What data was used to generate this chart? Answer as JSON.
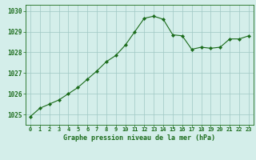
{
  "x": [
    0,
    1,
    2,
    3,
    4,
    5,
    6,
    7,
    8,
    9,
    10,
    11,
    12,
    13,
    14,
    15,
    16,
    17,
    18,
    19,
    20,
    21,
    22,
    23
  ],
  "y": [
    1024.9,
    1025.3,
    1025.5,
    1025.7,
    1026.0,
    1026.3,
    1026.7,
    1027.1,
    1027.55,
    1027.85,
    1028.35,
    1029.0,
    1029.65,
    1029.75,
    1029.6,
    1028.85,
    1028.8,
    1028.15,
    1028.25,
    1028.2,
    1028.25,
    1028.65,
    1028.65,
    1028.8
  ],
  "line_color": "#1a6b1a",
  "marker": "D",
  "marker_size": 2.2,
  "bg_color": "#d4eeea",
  "grid_color": "#a0c8c4",
  "xlabel": "Graphe pression niveau de la mer (hPa)",
  "xlabel_color": "#1a6b1a",
  "ylim": [
    1024.5,
    1030.3
  ],
  "yticks": [
    1025,
    1026,
    1027,
    1028,
    1029,
    1030
  ],
  "xlim": [
    -0.5,
    23.5
  ],
  "xticks": [
    0,
    1,
    2,
    3,
    4,
    5,
    6,
    7,
    8,
    9,
    10,
    11,
    12,
    13,
    14,
    15,
    16,
    17,
    18,
    19,
    20,
    21,
    22,
    23
  ],
  "tick_color": "#1a6b1a",
  "axis_color": "#1a6b1a",
  "tick_fontsize": 5.0,
  "ytick_fontsize": 5.5,
  "xlabel_fontsize": 6.0
}
